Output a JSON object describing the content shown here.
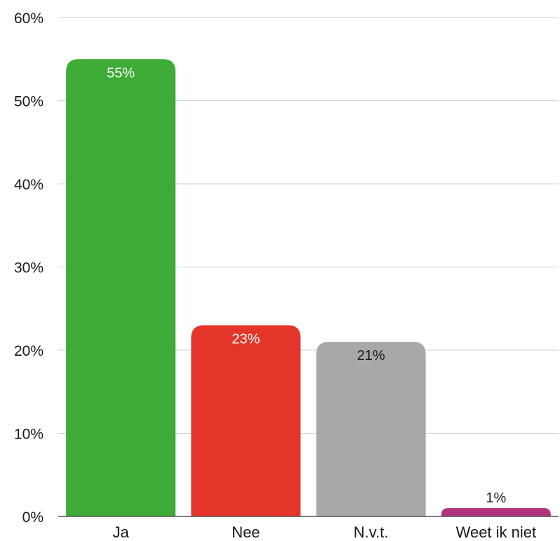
{
  "chart_data": {
    "type": "bar",
    "title": "",
    "xlabel": "",
    "ylabel": "",
    "categories": [
      "Ja",
      "Nee",
      "N.v.t.",
      "Weet ik niet"
    ],
    "values": [
      55,
      23,
      21,
      1
    ],
    "value_labels": [
      "55%",
      "23%",
      "21%",
      "1%"
    ],
    "ylim": [
      0,
      60
    ],
    "yticks": [
      0,
      10,
      20,
      30,
      40,
      50,
      60
    ],
    "ytick_labels": [
      "0%",
      "10%",
      "20%",
      "30%",
      "40%",
      "50%",
      "60%"
    ],
    "grid": true,
    "legend": "none",
    "colors": [
      "#3dab35",
      "#e3352a",
      "#a8a8a8",
      "#b0337c"
    ],
    "label_colors": [
      "#ffffff",
      "#ffffff",
      "#1a1a1a",
      "#1a1a1a"
    ]
  }
}
